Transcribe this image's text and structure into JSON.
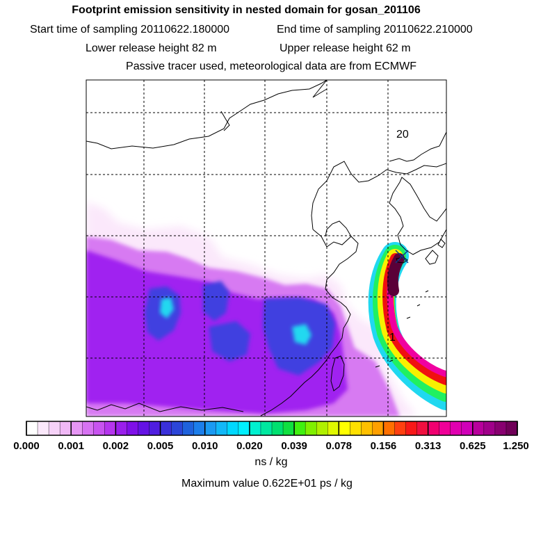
{
  "header": {
    "title": "Footprint emission sensitivity in nested domain for gosan_201106",
    "start_label": "Start time of sampling 20110622.180000",
    "end_label": "End time of sampling 20110622.210000",
    "lower_label": "Lower release height   82 m",
    "upper_label": "Upper release height   62 m",
    "info": "Passive tracer used, meteorological data are from ECMWF"
  },
  "map": {
    "labels": {
      "day_marker_20": "20",
      "day_marker_1": "1"
    },
    "receptor": "gosan",
    "colors": {
      "white_low": "#fbe8fb",
      "purple": "#a020f0",
      "blue": "#4040e0",
      "cyan": "#20d8f0",
      "green": "#20f060",
      "yellow": "#f8f000",
      "red": "#f01010",
      "magenta": "#f000a0",
      "dark": "#5a0038"
    }
  },
  "colorbar": {
    "ticks": [
      "0.000",
      "0.001",
      "0.002",
      "0.005",
      "0.010",
      "0.020",
      "0.039",
      "0.078",
      "0.156",
      "0.313",
      "0.625",
      "1.250"
    ],
    "colors": [
      "#ffffff",
      "#fbe8fb",
      "#f6d2f8",
      "#f0b8f6",
      "#e696f4",
      "#d772f2",
      "#c853f0",
      "#b535ee",
      "#9a1fec",
      "#7f10e8",
      "#6412e4",
      "#4f1ee0",
      "#3a30da",
      "#2c46d8",
      "#1f62dc",
      "#1c7eea",
      "#1b9af2",
      "#12b8f8",
      "#00d8ff",
      "#00f0ff",
      "#00f0d0",
      "#00e8a0",
      "#00e070",
      "#10e040",
      "#40f010",
      "#80f000",
      "#b0f000",
      "#e0f800",
      "#ffff00",
      "#ffe000",
      "#ffc000",
      "#ffa000",
      "#ff7000",
      "#ff4010",
      "#f81818",
      "#f01040",
      "#f00070",
      "#f00098",
      "#e000b0",
      "#d000b8",
      "#b8009c",
      "#a0008a",
      "#880070",
      "#700058"
    ],
    "unit": "ns / kg",
    "max_label": "Maximum value  0.622E+01 ps / kg"
  }
}
